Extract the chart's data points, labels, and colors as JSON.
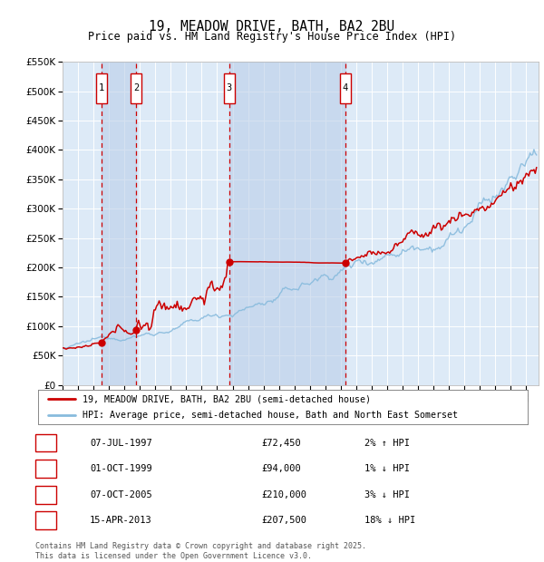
{
  "title": "19, MEADOW DRIVE, BATH, BA2 2BU",
  "subtitle": "Price paid vs. HM Land Registry's House Price Index (HPI)",
  "legend_line1": "19, MEADOW DRIVE, BATH, BA2 2BU (semi-detached house)",
  "legend_line2": "HPI: Average price, semi-detached house, Bath and North East Somerset",
  "transactions": [
    {
      "num": 1,
      "date": "07-JUL-1997",
      "price": 72450,
      "pct": "2%",
      "dir": "↑"
    },
    {
      "num": 2,
      "date": "01-OCT-1999",
      "price": 94000,
      "pct": "1%",
      "dir": "↓"
    },
    {
      "num": 3,
      "date": "07-OCT-2005",
      "price": 210000,
      "pct": "3%",
      "dir": "↓"
    },
    {
      "num": 4,
      "date": "15-APR-2013",
      "price": 207500,
      "pct": "18%",
      "dir": "↓"
    }
  ],
  "transaction_dates_decimal": [
    1997.52,
    1999.75,
    2005.77,
    2013.29
  ],
  "xmin": 1995.0,
  "xmax": 2025.8,
  "ymin": 0,
  "ymax": 550000,
  "yticks": [
    0,
    50000,
    100000,
    150000,
    200000,
    250000,
    300000,
    350000,
    400000,
    450000,
    500000,
    550000
  ],
  "background_color": "#ffffff",
  "plot_bg_color": "#ddeaf7",
  "grid_color": "#ffffff",
  "line_color_red": "#cc0000",
  "line_color_blue": "#88bbdd",
  "vline_color": "#cc0000",
  "box_color": "#cc0000",
  "shade_color": "#bbcfe8",
  "footnote": "Contains HM Land Registry data © Crown copyright and database right 2025.\nThis data is licensed under the Open Government Licence v3.0."
}
